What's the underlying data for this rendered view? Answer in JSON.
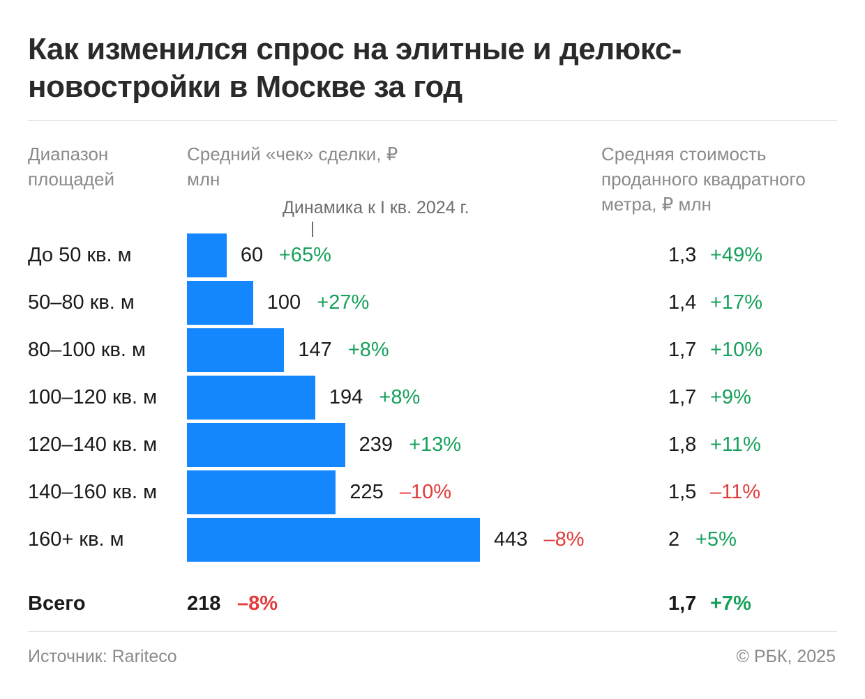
{
  "title": "Как изменился спрос на элитные и делюкс-новостройки в Москве за год",
  "headers": {
    "range": "Диапазон площадей",
    "check": "Средний «чек» сделки, ₽ млн",
    "sqm": "Средняя стоимость проданного квадратного метра, ₽ млн",
    "dynamics": "Динамика к I кв. 2024 г."
  },
  "colors": {
    "bar": "#1487ff",
    "positive": "#16a05a",
    "negative": "#e23b3b"
  },
  "chart_data": {
    "type": "bar",
    "orientation": "horizontal",
    "categories": [
      "До 50 кв. м",
      "50–80 кв. м",
      "80–100 кв. м",
      "100–120 кв. м",
      "120–140 кв. м",
      "140–160 кв. м",
      "160+ кв. м"
    ],
    "series": [
      {
        "values": [
          60,
          100,
          147,
          194,
          239,
          225,
          443
        ]
      }
    ],
    "check_labels": [
      "60",
      "100",
      "147",
      "194",
      "239",
      "225",
      "443"
    ],
    "check_changes": [
      "+65%",
      "+27%",
      "+8%",
      "+8%",
      "+13%",
      "–10%",
      "–8%"
    ],
    "sqm_values": [
      "1,3",
      "1,4",
      "1,7",
      "1,7",
      "1,8",
      "1,5",
      "2"
    ],
    "sqm_changes": [
      "+49%",
      "+17%",
      "+10%",
      "+9%",
      "+11%",
      "–11%",
      "+5%"
    ],
    "xlim": [
      0,
      443
    ],
    "grid": false,
    "total": {
      "label": "Всего",
      "check": "218",
      "check_change": "–8%",
      "sqm": "1,7",
      "sqm_change": "+7%"
    }
  },
  "footer": {
    "source": "Источник: Raritecо",
    "copyright": "© РБК, 2025"
  }
}
